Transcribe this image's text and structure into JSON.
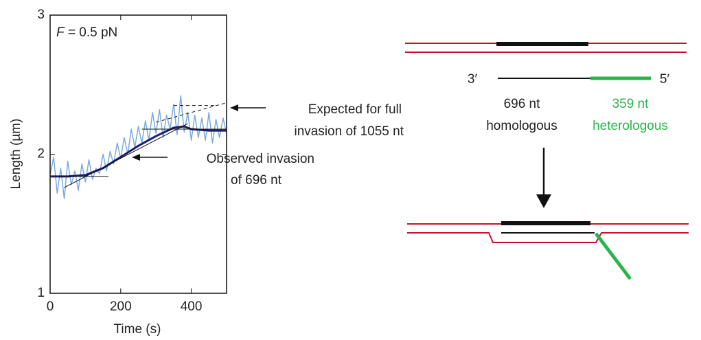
{
  "chart_data": {
    "type": "line",
    "force_label": {
      "symbol": "F",
      "value": "= 0.5 pN"
    },
    "x_label": "Time (s)",
    "y_label": "Length (µm)",
    "xlim": [
      0,
      500
    ],
    "xticks": [
      0,
      200,
      400
    ],
    "ylim": [
      1,
      3
    ],
    "yticks": [
      1,
      2,
      3
    ],
    "annotations": [
      {
        "lines": [
          "Expected for full",
          "invasion of 1055 nt"
        ]
      },
      {
        "lines": [
          "Observed invasion",
          "of 696 nt"
        ]
      }
    ],
    "series": [
      {
        "color": "#7aaadf",
        "width": 1.5,
        "x": [
          0,
          10,
          20,
          30,
          40,
          50,
          60,
          70,
          80,
          90,
          100,
          110,
          120,
          130,
          140,
          150,
          160,
          170,
          180,
          190,
          200,
          210,
          220,
          230,
          240,
          250,
          260,
          270,
          280,
          290,
          300,
          310,
          320,
          330,
          340,
          350,
          360,
          370,
          380,
          390,
          400,
          410,
          420,
          430,
          440,
          450,
          460,
          470,
          480,
          490,
          500
        ],
        "values": [
          1.85,
          1.98,
          1.72,
          1.9,
          1.68,
          1.95,
          1.78,
          1.88,
          1.74,
          1.93,
          1.8,
          1.96,
          1.82,
          1.9,
          1.86,
          2.0,
          1.88,
          2.02,
          1.93,
          2.08,
          1.97,
          2.12,
          2.0,
          2.18,
          2.05,
          2.2,
          2.08,
          2.24,
          2.1,
          2.3,
          2.15,
          2.32,
          2.12,
          2.28,
          2.18,
          2.36,
          2.14,
          2.42,
          2.16,
          2.3,
          2.1,
          2.28,
          2.12,
          2.26,
          2.1,
          2.3,
          2.08,
          2.25,
          2.12,
          2.26,
          2.15
        ]
      },
      {
        "color": "#1c1c6e",
        "width": 3,
        "x": [
          0,
          50,
          100,
          150,
          200,
          250,
          300,
          350,
          380,
          400,
          450,
          500
        ],
        "values": [
          1.84,
          1.84,
          1.85,
          1.9,
          1.98,
          2.06,
          2.13,
          2.19,
          2.2,
          2.18,
          2.17,
          2.17
        ]
      },
      {
        "color": "#111111",
        "width": 1,
        "x": [
          25,
          165
        ],
        "values": [
          1.84,
          1.84
        ]
      },
      {
        "color": "#111111",
        "width": 1,
        "x": [
          40,
          390
        ],
        "values": [
          1.76,
          2.22
        ]
      },
      {
        "color": "#111111",
        "width": 1,
        "x": [
          260,
          500
        ],
        "values": [
          2.18,
          2.18
        ]
      },
      {
        "color": "#111111",
        "width": 1,
        "dashed": true,
        "x": [
          300,
          500
        ],
        "values": [
          2.23,
          2.37
        ]
      },
      {
        "color": "#111111",
        "width": 1,
        "dashed": true,
        "x": [
          350,
          470
        ],
        "values": [
          2.35,
          2.35
        ]
      }
    ]
  },
  "diagram": {
    "end_3": "3′",
    "end_5": "5′",
    "homologous": {
      "length": "696 nt",
      "label": "homologous"
    },
    "heterologous": {
      "length": "359 nt",
      "label": "heterologous"
    }
  }
}
